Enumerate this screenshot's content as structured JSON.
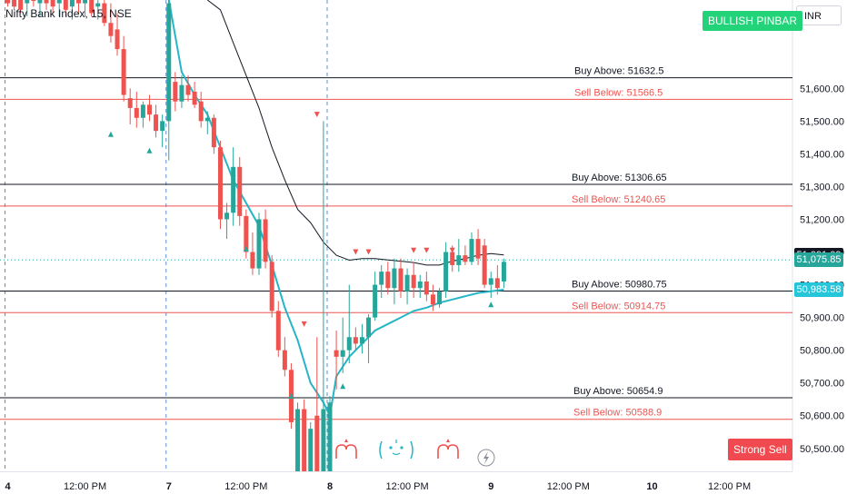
{
  "chart_data": {
    "type": "candlestick",
    "symbol_title": "Nifty Bank Index, 15, NSE",
    "currency": "INR",
    "y_range": [
      50430,
      51870
    ],
    "y_ticks": [
      "51,600.00",
      "51,500.00",
      "51,400.00",
      "51,300.00",
      "51,200.00",
      "51,100.00",
      "51,000.00",
      "50,900.00",
      "50,800.00",
      "50,700.00",
      "50,600.00",
      "50,500.00"
    ],
    "y_tick_values": [
      51600,
      51500,
      51400,
      51300,
      51200,
      51100,
      51000,
      50900,
      50800,
      50700,
      50600,
      50500
    ],
    "x_labels": [
      {
        "label": "4",
        "bar": 0
      },
      {
        "label": "12:00 PM",
        "bar": 12
      },
      {
        "label": "7",
        "bar": 25
      },
      {
        "label": "12:00 PM",
        "bar": 37
      },
      {
        "label": "8",
        "bar": 50
      },
      {
        "label": "12:00 PM",
        "bar": 62
      },
      {
        "label": "9",
        "bar": 75
      },
      {
        "label": "12:00 PM",
        "bar": 87
      },
      {
        "label": "10",
        "bar": 100
      },
      {
        "label": "12:00 PM",
        "bar": 112
      }
    ],
    "session_breaks": [
      0,
      25,
      50
    ],
    "levels": [
      {
        "label": "Buy Above: 51632.5",
        "value": 51632.5,
        "kind": "buy"
      },
      {
        "label": "Sell Below: 51566.5",
        "value": 51566.5,
        "kind": "sell"
      },
      {
        "label": "Buy Above: 51306.65",
        "value": 51306.65,
        "kind": "buy"
      },
      {
        "label": "Sell Below: 51240.65",
        "value": 51240.65,
        "kind": "sell"
      },
      {
        "label": "Buy Above: 50980.75",
        "value": 50980.75,
        "kind": "buy"
      },
      {
        "label": "Sell Below: 50914.75",
        "value": 50914.75,
        "kind": "sell"
      },
      {
        "label": "Buy Above: 50654.9",
        "value": 50654.9,
        "kind": "buy"
      },
      {
        "label": "Sell Below: 50588.9",
        "value": 50588.9,
        "kind": "sell"
      }
    ],
    "price_tags": [
      {
        "label": "51,091.09",
        "value": 51091.09,
        "color": "#131722"
      },
      {
        "label": "51,075.85",
        "value": 51075.85,
        "color": "#26a69a"
      },
      {
        "label": "50,983.58",
        "value": 50983.58,
        "color": "#26c6da"
      }
    ],
    "badges": {
      "bullish": "BULLISH PINBAR",
      "strong_sell": "Strong Sell"
    },
    "colors": {
      "up": "#26a69a",
      "down": "#ef5350",
      "buy_line": "#131722",
      "sell_line": "#ef5350",
      "ema_fast": "#26b5c7",
      "ema_slow": "#131722",
      "badge_green": "#22d37a",
      "badge_red": "#f0494f"
    },
    "candles": [
      {
        "bar": 0,
        "o": 51880,
        "h": 51900,
        "l": 51850,
        "c": 51860
      },
      {
        "bar": 1,
        "o": 51870,
        "h": 51890,
        "l": 51840,
        "c": 51850
      },
      {
        "bar": 2,
        "o": 51880,
        "h": 51920,
        "l": 51830,
        "c": 51840
      },
      {
        "bar": 3,
        "o": 51860,
        "h": 51900,
        "l": 51820,
        "c": 51880
      },
      {
        "bar": 4,
        "o": 51890,
        "h": 51920,
        "l": 51850,
        "c": 51870
      },
      {
        "bar": 5,
        "o": 51860,
        "h": 51900,
        "l": 51820,
        "c": 51880
      },
      {
        "bar": 6,
        "o": 51880,
        "h": 51920,
        "l": 51840,
        "c": 51860
      },
      {
        "bar": 7,
        "o": 51870,
        "h": 51900,
        "l": 51830,
        "c": 51850
      },
      {
        "bar": 8,
        "o": 51860,
        "h": 51900,
        "l": 51820,
        "c": 51880
      },
      {
        "bar": 9,
        "o": 51880,
        "h": 51910,
        "l": 51820,
        "c": 51840
      },
      {
        "bar": 10,
        "o": 51850,
        "h": 51900,
        "l": 51810,
        "c": 51870
      },
      {
        "bar": 11,
        "o": 51880,
        "h": 51920,
        "l": 51830,
        "c": 51860
      },
      {
        "bar": 12,
        "o": 51860,
        "h": 51900,
        "l": 51820,
        "c": 51870
      },
      {
        "bar": 13,
        "o": 51870,
        "h": 51900,
        "l": 51820,
        "c": 51830
      },
      {
        "bar": 14,
        "o": 51850,
        "h": 51900,
        "l": 51810,
        "c": 51860
      },
      {
        "bar": 15,
        "o": 51860,
        "h": 51880,
        "l": 51790,
        "c": 51800
      },
      {
        "bar": 16,
        "o": 51800,
        "h": 51860,
        "l": 51740,
        "c": 51760
      },
      {
        "bar": 17,
        "o": 51780,
        "h": 51830,
        "l": 51700,
        "c": 51720
      },
      {
        "bar": 18,
        "o": 51720,
        "h": 51760,
        "l": 51560,
        "c": 51580
      },
      {
        "bar": 19,
        "o": 51570,
        "h": 51600,
        "l": 51490,
        "c": 51540
      },
      {
        "bar": 20,
        "o": 51540,
        "h": 51590,
        "l": 51480,
        "c": 51510
      },
      {
        "bar": 21,
        "o": 51510,
        "h": 51560,
        "l": 51480,
        "c": 51550
      },
      {
        "bar": 22,
        "o": 51550,
        "h": 51580,
        "l": 51500,
        "c": 51520
      },
      {
        "bar": 23,
        "o": 51520,
        "h": 51550,
        "l": 51450,
        "c": 51470
      },
      {
        "bar": 24,
        "o": 51470,
        "h": 51520,
        "l": 51420,
        "c": 51500
      },
      {
        "bar": 25,
        "o": 51500,
        "h": 51880,
        "l": 51380,
        "c": 51860
      },
      {
        "bar": 26,
        "o": 51620,
        "h": 51650,
        "l": 51530,
        "c": 51560
      },
      {
        "bar": 27,
        "o": 51560,
        "h": 51640,
        "l": 51540,
        "c": 51610
      },
      {
        "bar": 28,
        "o": 51610,
        "h": 51640,
        "l": 51560,
        "c": 51580
      },
      {
        "bar": 29,
        "o": 51590,
        "h": 51620,
        "l": 51540,
        "c": 51550
      },
      {
        "bar": 30,
        "o": 51560,
        "h": 51590,
        "l": 51480,
        "c": 51500
      },
      {
        "bar": 31,
        "o": 51500,
        "h": 51530,
        "l": 51460,
        "c": 51510
      },
      {
        "bar": 32,
        "o": 51510,
        "h": 51520,
        "l": 51400,
        "c": 51420
      },
      {
        "bar": 33,
        "o": 51420,
        "h": 51440,
        "l": 51170,
        "c": 51200
      },
      {
        "bar": 34,
        "o": 51200,
        "h": 51250,
        "l": 51140,
        "c": 51220
      },
      {
        "bar": 35,
        "o": 51220,
        "h": 51420,
        "l": 51180,
        "c": 51360
      },
      {
        "bar": 36,
        "o": 51360,
        "h": 51390,
        "l": 51180,
        "c": 51210
      },
      {
        "bar": 37,
        "o": 51210,
        "h": 51230,
        "l": 51080,
        "c": 51100
      },
      {
        "bar": 38,
        "o": 51100,
        "h": 51160,
        "l": 51030,
        "c": 51050
      },
      {
        "bar": 39,
        "o": 51050,
        "h": 51220,
        "l": 51030,
        "c": 51200
      },
      {
        "bar": 40,
        "o": 51200,
        "h": 51230,
        "l": 51050,
        "c": 51070
      },
      {
        "bar": 41,
        "o": 51070,
        "h": 51090,
        "l": 50900,
        "c": 50920
      },
      {
        "bar": 42,
        "o": 50920,
        "h": 50950,
        "l": 50780,
        "c": 50800
      },
      {
        "bar": 43,
        "o": 50800,
        "h": 50840,
        "l": 50720,
        "c": 50740
      },
      {
        "bar": 44,
        "o": 50740,
        "h": 50760,
        "l": 50560,
        "c": 50580
      },
      {
        "bar": 45,
        "o": 50420,
        "h": 50640,
        "l": 50400,
        "c": 50620
      },
      {
        "bar": 46,
        "o": 50620,
        "h": 50650,
        "l": 50380,
        "c": 50400
      },
      {
        "bar": 47,
        "o": 50420,
        "h": 50580,
        "l": 50400,
        "c": 50560
      },
      {
        "bar": 48,
        "o": 50600,
        "h": 50840,
        "l": 50380,
        "c": 50400
      },
      {
        "bar": 49,
        "o": 50420,
        "h": 51500,
        "l": 50400,
        "c": 50620
      },
      {
        "bar": 50,
        "o": 50420,
        "h": 50660,
        "l": 50400,
        "c": 50640
      },
      {
        "bar": 51,
        "o": 50800,
        "h": 50860,
        "l": 50680,
        "c": 50780
      },
      {
        "bar": 52,
        "o": 50780,
        "h": 50900,
        "l": 50730,
        "c": 50800
      },
      {
        "bar": 53,
        "o": 50800,
        "h": 51000,
        "l": 50760,
        "c": 50840
      },
      {
        "bar": 54,
        "o": 50840,
        "h": 50870,
        "l": 50800,
        "c": 50820
      },
      {
        "bar": 55,
        "o": 50820,
        "h": 50880,
        "l": 50790,
        "c": 50840
      },
      {
        "bar": 56,
        "o": 50840,
        "h": 50910,
        "l": 50760,
        "c": 50900
      },
      {
        "bar": 57,
        "o": 50900,
        "h": 51040,
        "l": 50890,
        "c": 51000
      },
      {
        "bar": 58,
        "o": 51000,
        "h": 51060,
        "l": 50960,
        "c": 51040
      },
      {
        "bar": 59,
        "o": 51040,
        "h": 51070,
        "l": 50970,
        "c": 50990
      },
      {
        "bar": 60,
        "o": 50990,
        "h": 51080,
        "l": 50940,
        "c": 51050
      },
      {
        "bar": 61,
        "o": 51050,
        "h": 51080,
        "l": 50960,
        "c": 50980
      },
      {
        "bar": 62,
        "o": 50980,
        "h": 51050,
        "l": 50940,
        "c": 51030
      },
      {
        "bar": 63,
        "o": 51030,
        "h": 51070,
        "l": 50960,
        "c": 50990
      },
      {
        "bar": 64,
        "o": 50990,
        "h": 51030,
        "l": 50960,
        "c": 51010
      },
      {
        "bar": 65,
        "o": 51010,
        "h": 51040,
        "l": 50950,
        "c": 50970
      },
      {
        "bar": 66,
        "o": 50970,
        "h": 51000,
        "l": 50920,
        "c": 50940
      },
      {
        "bar": 67,
        "o": 50940,
        "h": 50990,
        "l": 50930,
        "c": 50980
      },
      {
        "bar": 68,
        "o": 50980,
        "h": 51130,
        "l": 50960,
        "c": 51100
      },
      {
        "bar": 69,
        "o": 51100,
        "h": 51120,
        "l": 51040,
        "c": 51060
      },
      {
        "bar": 70,
        "o": 51060,
        "h": 51140,
        "l": 51040,
        "c": 51090
      },
      {
        "bar": 71,
        "o": 51090,
        "h": 51120,
        "l": 51060,
        "c": 51070
      },
      {
        "bar": 72,
        "o": 51070,
        "h": 51160,
        "l": 51060,
        "c": 51140
      },
      {
        "bar": 73,
        "o": 51140,
        "h": 51170,
        "l": 51060,
        "c": 51080
      },
      {
        "bar": 74,
        "o": 51120,
        "h": 51140,
        "l": 50990,
        "c": 51000
      },
      {
        "bar": 75,
        "o": 51000,
        "h": 51040,
        "l": 50960,
        "c": 51020
      },
      {
        "bar": 76,
        "o": 51020,
        "h": 51060,
        "l": 50970,
        "c": 50990
      },
      {
        "bar": 77,
        "o": 51010,
        "h": 51080,
        "l": 50990,
        "c": 51070
      }
    ],
    "ema_fast": [
      [
        25,
        51880
      ],
      [
        27,
        51650
      ],
      [
        29,
        51580
      ],
      [
        31,
        51520
      ],
      [
        33,
        51420
      ],
      [
        35,
        51320
      ],
      [
        37,
        51250
      ],
      [
        39,
        51180
      ],
      [
        41,
        51060
      ],
      [
        43,
        50930
      ],
      [
        45,
        50830
      ],
      [
        47,
        50700
      ],
      [
        49,
        50640
      ],
      [
        50,
        50600
      ],
      [
        51,
        50720
      ],
      [
        53,
        50780
      ],
      [
        55,
        50820
      ],
      [
        57,
        50860
      ],
      [
        59,
        50880
      ],
      [
        61,
        50900
      ],
      [
        63,
        50920
      ],
      [
        65,
        50930
      ],
      [
        67,
        50945
      ],
      [
        69,
        50955
      ],
      [
        71,
        50965
      ],
      [
        73,
        50975
      ],
      [
        75,
        50980
      ],
      [
        77,
        50985
      ]
    ],
    "ema_slow": [
      [
        31,
        51960
      ],
      [
        33,
        51840
      ],
      [
        35,
        51740
      ],
      [
        37,
        51640
      ],
      [
        39,
        51540
      ],
      [
        41,
        51420
      ],
      [
        43,
        51320
      ],
      [
        45,
        51230
      ],
      [
        47,
        51190
      ],
      [
        49,
        51130
      ],
      [
        51,
        51090
      ],
      [
        53,
        51075
      ],
      [
        55,
        51080
      ],
      [
        57,
        51080
      ],
      [
        59,
        51076
      ],
      [
        61,
        51072
      ],
      [
        63,
        51068
      ],
      [
        65,
        51060
      ],
      [
        67,
        51060
      ],
      [
        69,
        51072
      ],
      [
        71,
        51080
      ],
      [
        73,
        51090
      ],
      [
        75,
        51095
      ],
      [
        77,
        51091
      ]
    ],
    "buy_markers": [
      [
        16,
        51460
      ],
      [
        22,
        51410
      ],
      [
        35,
        51340
      ],
      [
        37,
        51110
      ],
      [
        44,
        50660
      ],
      [
        52,
        50690
      ],
      [
        75,
        50940
      ]
    ],
    "sell_markers": [
      [
        48,
        51520
      ],
      [
        46,
        50880
      ],
      [
        54,
        51100
      ],
      [
        56,
        51100
      ],
      [
        63,
        51105
      ],
      [
        65,
        51105
      ],
      [
        69,
        51105
      ]
    ]
  }
}
